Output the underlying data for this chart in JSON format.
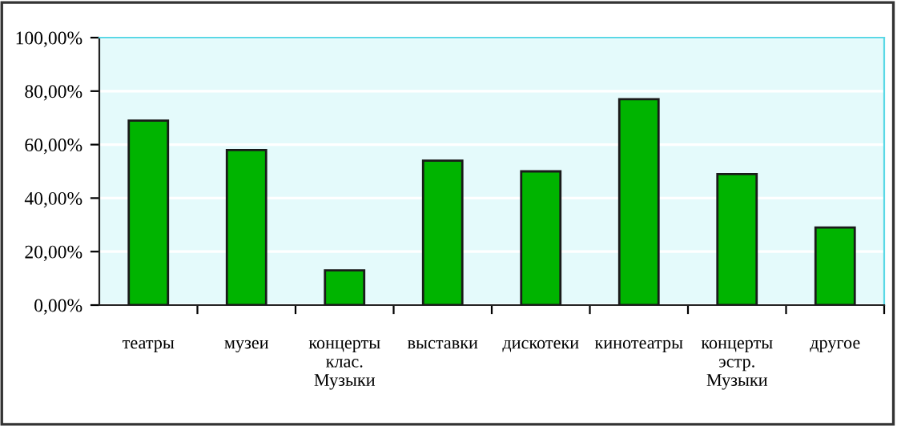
{
  "chart_data": {
    "type": "bar",
    "categories": [
      "театры",
      "музеи",
      "концерты\nклас.\nМузыки",
      "выставки",
      "дискотеки",
      "кинотеатры",
      "концерты\nэстр.\nМузыки",
      "другое"
    ],
    "values": [
      69,
      58,
      13,
      54,
      50,
      77,
      49,
      29
    ],
    "color": "#00b400",
    "ylim": [
      0,
      100
    ],
    "yticks": [
      {
        "value": 0,
        "label": "0,00%"
      },
      {
        "value": 20,
        "label": "20,00%"
      },
      {
        "value": 40,
        "label": "40,00%"
      },
      {
        "value": 60,
        "label": "60,00%"
      },
      {
        "value": 80,
        "label": "80,00%"
      },
      {
        "value": 100,
        "label": "100,00%"
      }
    ],
    "grid": "y"
  }
}
